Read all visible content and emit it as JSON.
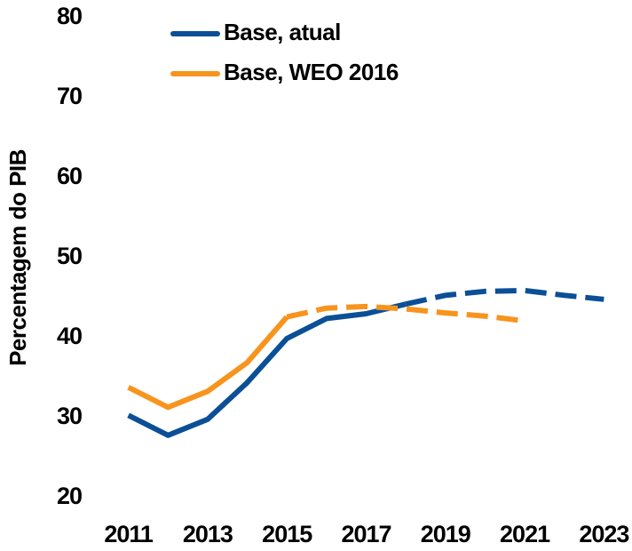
{
  "chart_data": {
    "type": "line",
    "y_label": "Percentagem do PIB",
    "x": [
      2011,
      2012,
      2013,
      2014,
      2015,
      2016,
      2017,
      2018,
      2019,
      2020,
      2021,
      2022,
      2023
    ],
    "series": [
      {
        "name": "Base, atual",
        "color": "#0b4f96",
        "dash_from": 2018,
        "values": [
          30.3,
          27.8,
          29.8,
          34.4,
          39.9,
          42.4,
          43.0,
          44.2,
          45.3,
          45.8,
          45.9,
          45.3,
          44.8
        ]
      },
      {
        "name": "Base, WEO 2016",
        "color": "#f7941d",
        "dash_from": 2015,
        "values": [
          33.8,
          31.3,
          33.3,
          36.9,
          42.6,
          43.7,
          43.9,
          43.6,
          43.1,
          42.7,
          42.1,
          null,
          null
        ]
      }
    ],
    "xlim": [
      2010,
      2024
    ],
    "xticks": [
      2011,
      2013,
      2015,
      2017,
      2019,
      2021,
      2023
    ],
    "ylim": [
      20,
      80
    ],
    "yticks": [
      20,
      30,
      40,
      50,
      60,
      70,
      80
    ],
    "grid": false
  }
}
